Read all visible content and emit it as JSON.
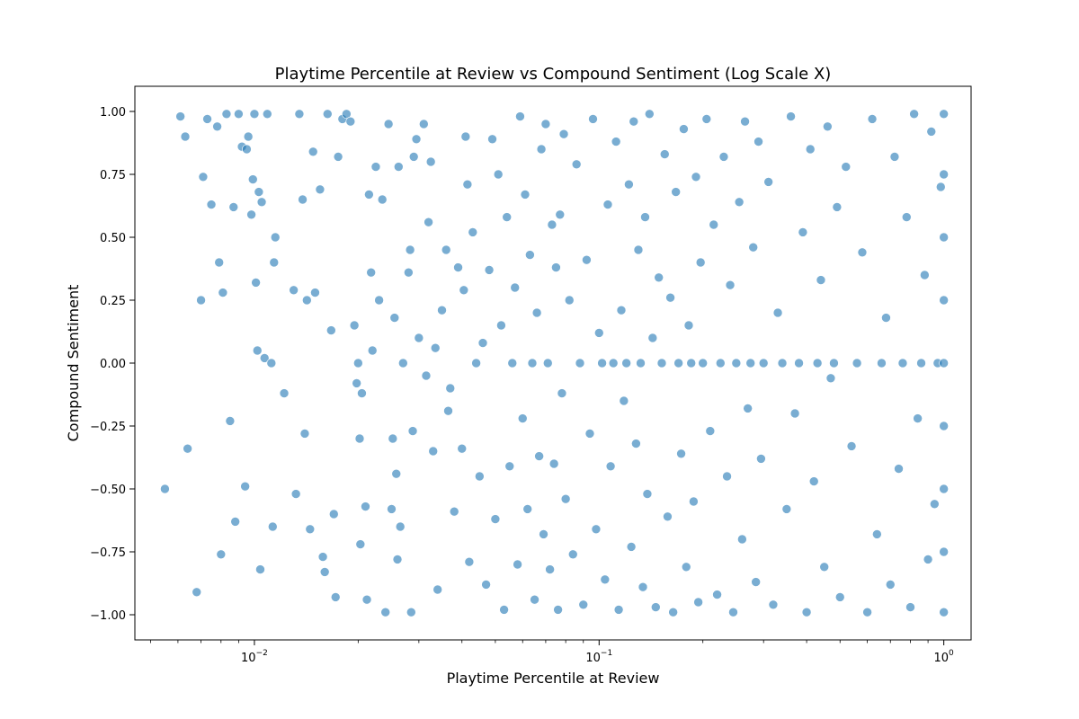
{
  "chart_data": {
    "type": "scatter",
    "title": "Playtime Percentile at Review vs Compound Sentiment (Log Scale X)",
    "xlabel": "Playtime Percentile at Review",
    "ylabel": "Compound Sentiment",
    "xscale": "log",
    "xlim": [
      0.0045,
      1.2
    ],
    "ylim": [
      -1.1,
      1.1
    ],
    "x_ticks": [
      {
        "value": 0.01,
        "base": "10",
        "exp": "−2"
      },
      {
        "value": 0.1,
        "base": "10",
        "exp": "−1"
      },
      {
        "value": 1,
        "base": "10",
        "exp": "0"
      }
    ],
    "y_ticks": [
      {
        "value": 1.0,
        "label": "1.00"
      },
      {
        "value": 0.75,
        "label": "0.75"
      },
      {
        "value": 0.5,
        "label": "0.50"
      },
      {
        "value": 0.25,
        "label": "0.25"
      },
      {
        "value": 0.0,
        "label": "0.00"
      },
      {
        "value": -0.25,
        "label": "−0.25"
      },
      {
        "value": -0.5,
        "label": "−0.50"
      },
      {
        "value": -0.75,
        "label": "−0.75"
      },
      {
        "value": -1.0,
        "label": "−1.00"
      }
    ],
    "grid": false,
    "marker_color": "#1f77b4",
    "marker_alpha": 0.6,
    "marker_edge": "#ffffff",
    "points": [
      [
        0.0055,
        -0.5
      ],
      [
        0.0061,
        0.98
      ],
      [
        0.0063,
        0.9
      ],
      [
        0.0064,
        -0.34
      ],
      [
        0.0068,
        -0.91
      ],
      [
        0.007,
        0.25
      ],
      [
        0.0071,
        0.74
      ],
      [
        0.0073,
        0.97
      ],
      [
        0.0075,
        0.63
      ],
      [
        0.0078,
        0.94
      ],
      [
        0.0079,
        0.4
      ],
      [
        0.008,
        -0.76
      ],
      [
        0.0081,
        0.28
      ],
      [
        0.0083,
        0.99
      ],
      [
        0.0085,
        -0.23
      ],
      [
        0.0087,
        0.62
      ],
      [
        0.0088,
        -0.63
      ],
      [
        0.009,
        0.99
      ],
      [
        0.0092,
        0.86
      ],
      [
        0.0094,
        -0.49
      ],
      [
        0.0095,
        0.85
      ],
      [
        0.0096,
        0.9
      ],
      [
        0.0098,
        0.59
      ],
      [
        0.0099,
        0.73
      ],
      [
        0.01,
        0.99
      ],
      [
        0.0101,
        0.32
      ],
      [
        0.0102,
        0.05
      ],
      [
        0.0103,
        0.68
      ],
      [
        0.0104,
        -0.82
      ],
      [
        0.0105,
        0.64
      ],
      [
        0.0107,
        0.02
      ],
      [
        0.0109,
        0.99
      ],
      [
        0.0112,
        0.0
      ],
      [
        0.0113,
        -0.65
      ],
      [
        0.0114,
        0.4
      ],
      [
        0.0115,
        0.5
      ],
      [
        0.0122,
        -0.12
      ],
      [
        0.013,
        0.29
      ],
      [
        0.0132,
        -0.52
      ],
      [
        0.0135,
        0.99
      ],
      [
        0.0138,
        0.65
      ],
      [
        0.014,
        -0.28
      ],
      [
        0.0142,
        0.25
      ],
      [
        0.0145,
        -0.66
      ],
      [
        0.0148,
        0.84
      ],
      [
        0.015,
        0.28
      ],
      [
        0.0155,
        0.69
      ],
      [
        0.0158,
        -0.77
      ],
      [
        0.016,
        -0.83
      ],
      [
        0.0163,
        0.99
      ],
      [
        0.0167,
        0.13
      ],
      [
        0.017,
        -0.6
      ],
      [
        0.0172,
        -0.93
      ],
      [
        0.0175,
        0.82
      ],
      [
        0.018,
        0.97
      ],
      [
        0.0185,
        0.99
      ],
      [
        0.019,
        0.96
      ],
      [
        0.0195,
        0.15
      ],
      [
        0.0198,
        -0.08
      ],
      [
        0.02,
        0.0
      ],
      [
        0.0202,
        -0.3
      ],
      [
        0.0203,
        -0.72
      ],
      [
        0.0205,
        -0.12
      ],
      [
        0.021,
        -0.57
      ],
      [
        0.0212,
        -0.94
      ],
      [
        0.0215,
        0.67
      ],
      [
        0.0218,
        0.36
      ],
      [
        0.022,
        0.05
      ],
      [
        0.0225,
        0.78
      ],
      [
        0.023,
        0.25
      ],
      [
        0.0235,
        0.65
      ],
      [
        0.024,
        -0.99
      ],
      [
        0.0245,
        0.95
      ],
      [
        0.025,
        -0.58
      ],
      [
        0.0252,
        -0.3
      ],
      [
        0.0255,
        0.18
      ],
      [
        0.0258,
        -0.44
      ],
      [
        0.026,
        -0.78
      ],
      [
        0.0262,
        0.78
      ],
      [
        0.0265,
        -0.65
      ],
      [
        0.027,
        0.0
      ],
      [
        0.028,
        0.36
      ],
      [
        0.0283,
        0.45
      ],
      [
        0.0285,
        -0.99
      ],
      [
        0.0288,
        -0.27
      ],
      [
        0.029,
        0.82
      ],
      [
        0.0295,
        0.89
      ],
      [
        0.03,
        0.1
      ],
      [
        0.031,
        0.95
      ],
      [
        0.0315,
        -0.05
      ],
      [
        0.032,
        0.56
      ],
      [
        0.0325,
        0.8
      ],
      [
        0.033,
        -0.35
      ],
      [
        0.0335,
        0.06
      ],
      [
        0.034,
        -0.9
      ],
      [
        0.035,
        0.21
      ],
      [
        0.036,
        0.45
      ],
      [
        0.0365,
        -0.19
      ],
      [
        0.037,
        -0.1
      ],
      [
        0.038,
        -0.59
      ],
      [
        0.039,
        0.38
      ],
      [
        0.04,
        -0.34
      ],
      [
        0.0405,
        0.29
      ],
      [
        0.041,
        0.9
      ],
      [
        0.0415,
        0.71
      ],
      [
        0.042,
        -0.79
      ],
      [
        0.043,
        0.52
      ],
      [
        0.044,
        0.0
      ],
      [
        0.045,
        -0.45
      ],
      [
        0.046,
        0.08
      ],
      [
        0.047,
        -0.88
      ],
      [
        0.048,
        0.37
      ],
      [
        0.049,
        0.89
      ],
      [
        0.05,
        -0.62
      ],
      [
        0.051,
        0.75
      ],
      [
        0.052,
        0.15
      ],
      [
        0.053,
        -0.98
      ],
      [
        0.054,
        0.58
      ],
      [
        0.055,
        -0.41
      ],
      [
        0.056,
        0.0
      ],
      [
        0.057,
        0.3
      ],
      [
        0.058,
        -0.8
      ],
      [
        0.059,
        0.98
      ],
      [
        0.06,
        -0.22
      ],
      [
        0.061,
        0.67
      ],
      [
        0.062,
        -0.58
      ],
      [
        0.063,
        0.43
      ],
      [
        0.064,
        0.0
      ],
      [
        0.065,
        -0.94
      ],
      [
        0.066,
        0.2
      ],
      [
        0.067,
        -0.37
      ],
      [
        0.068,
        0.85
      ],
      [
        0.069,
        -0.68
      ],
      [
        0.07,
        0.95
      ],
      [
        0.071,
        0.0
      ],
      [
        0.072,
        -0.82
      ],
      [
        0.073,
        0.55
      ],
      [
        0.074,
        -0.4
      ],
      [
        0.075,
        0.38
      ],
      [
        0.076,
        -0.98
      ],
      [
        0.077,
        0.59
      ],
      [
        0.078,
        -0.12
      ],
      [
        0.079,
        0.91
      ],
      [
        0.08,
        -0.54
      ],
      [
        0.082,
        0.25
      ],
      [
        0.084,
        -0.76
      ],
      [
        0.086,
        0.79
      ],
      [
        0.088,
        0.0
      ],
      [
        0.09,
        -0.96
      ],
      [
        0.092,
        0.41
      ],
      [
        0.094,
        -0.28
      ],
      [
        0.096,
        0.97
      ],
      [
        0.098,
        -0.66
      ],
      [
        0.1,
        0.12
      ],
      [
        0.102,
        0.0
      ],
      [
        0.104,
        -0.86
      ],
      [
        0.106,
        0.63
      ],
      [
        0.108,
        -0.41
      ],
      [
        0.11,
        0.0
      ],
      [
        0.112,
        0.88
      ],
      [
        0.114,
        -0.98
      ],
      [
        0.116,
        0.21
      ],
      [
        0.118,
        -0.15
      ],
      [
        0.12,
        0.0
      ],
      [
        0.122,
        0.71
      ],
      [
        0.124,
        -0.73
      ],
      [
        0.126,
        0.96
      ],
      [
        0.128,
        -0.32
      ],
      [
        0.13,
        0.45
      ],
      [
        0.132,
        0.0
      ],
      [
        0.134,
        -0.89
      ],
      [
        0.136,
        0.58
      ],
      [
        0.138,
        -0.52
      ],
      [
        0.14,
        0.99
      ],
      [
        0.143,
        0.1
      ],
      [
        0.146,
        -0.97
      ],
      [
        0.149,
        0.34
      ],
      [
        0.152,
        0.0
      ],
      [
        0.155,
        0.83
      ],
      [
        0.158,
        -0.61
      ],
      [
        0.161,
        0.26
      ],
      [
        0.164,
        -0.99
      ],
      [
        0.167,
        0.68
      ],
      [
        0.17,
        0.0
      ],
      [
        0.173,
        -0.36
      ],
      [
        0.176,
        0.93
      ],
      [
        0.179,
        -0.81
      ],
      [
        0.182,
        0.15
      ],
      [
        0.185,
        0.0
      ],
      [
        0.188,
        -0.55
      ],
      [
        0.191,
        0.74
      ],
      [
        0.194,
        -0.95
      ],
      [
        0.197,
        0.4
      ],
      [
        0.2,
        0.0
      ],
      [
        0.205,
        0.97
      ],
      [
        0.21,
        -0.27
      ],
      [
        0.215,
        0.55
      ],
      [
        0.22,
        -0.92
      ],
      [
        0.225,
        0.0
      ],
      [
        0.23,
        0.82
      ],
      [
        0.235,
        -0.45
      ],
      [
        0.24,
        0.31
      ],
      [
        0.245,
        -0.99
      ],
      [
        0.25,
        0.0
      ],
      [
        0.255,
        0.64
      ],
      [
        0.26,
        -0.7
      ],
      [
        0.265,
        0.96
      ],
      [
        0.27,
        -0.18
      ],
      [
        0.275,
        0.0
      ],
      [
        0.28,
        0.46
      ],
      [
        0.285,
        -0.87
      ],
      [
        0.29,
        0.88
      ],
      [
        0.295,
        -0.38
      ],
      [
        0.3,
        0.0
      ],
      [
        0.31,
        0.72
      ],
      [
        0.32,
        -0.96
      ],
      [
        0.33,
        0.2
      ],
      [
        0.34,
        0.0
      ],
      [
        0.35,
        -0.58
      ],
      [
        0.36,
        0.98
      ],
      [
        0.37,
        -0.2
      ],
      [
        0.38,
        0.0
      ],
      [
        0.39,
        0.52
      ],
      [
        0.4,
        -0.99
      ],
      [
        0.41,
        0.85
      ],
      [
        0.42,
        -0.47
      ],
      [
        0.43,
        0.0
      ],
      [
        0.44,
        0.33
      ],
      [
        0.45,
        -0.81
      ],
      [
        0.46,
        0.94
      ],
      [
        0.47,
        -0.06
      ],
      [
        0.48,
        0.0
      ],
      [
        0.49,
        0.62
      ],
      [
        0.5,
        -0.93
      ],
      [
        0.52,
        0.78
      ],
      [
        0.54,
        -0.33
      ],
      [
        0.56,
        0.0
      ],
      [
        0.58,
        0.44
      ],
      [
        0.6,
        -0.99
      ],
      [
        0.62,
        0.97
      ],
      [
        0.64,
        -0.68
      ],
      [
        0.66,
        0.0
      ],
      [
        0.68,
        0.18
      ],
      [
        0.7,
        -0.88
      ],
      [
        0.72,
        0.82
      ],
      [
        0.74,
        -0.42
      ],
      [
        0.76,
        0.0
      ],
      [
        0.78,
        0.58
      ],
      [
        0.8,
        -0.97
      ],
      [
        0.82,
        0.99
      ],
      [
        0.84,
        -0.22
      ],
      [
        0.86,
        0.0
      ],
      [
        0.88,
        0.35
      ],
      [
        0.9,
        -0.78
      ],
      [
        0.92,
        0.92
      ],
      [
        0.94,
        -0.56
      ],
      [
        0.96,
        0.0
      ],
      [
        0.98,
        0.7
      ],
      [
        1.0,
        -0.99
      ],
      [
        1.0,
        0.99
      ],
      [
        1.0,
        0.0
      ],
      [
        1.0,
        0.5
      ],
      [
        1.0,
        -0.5
      ],
      [
        1.0,
        0.25
      ],
      [
        1.0,
        -0.25
      ],
      [
        1.0,
        0.75
      ],
      [
        1.0,
        -0.75
      ]
    ]
  }
}
